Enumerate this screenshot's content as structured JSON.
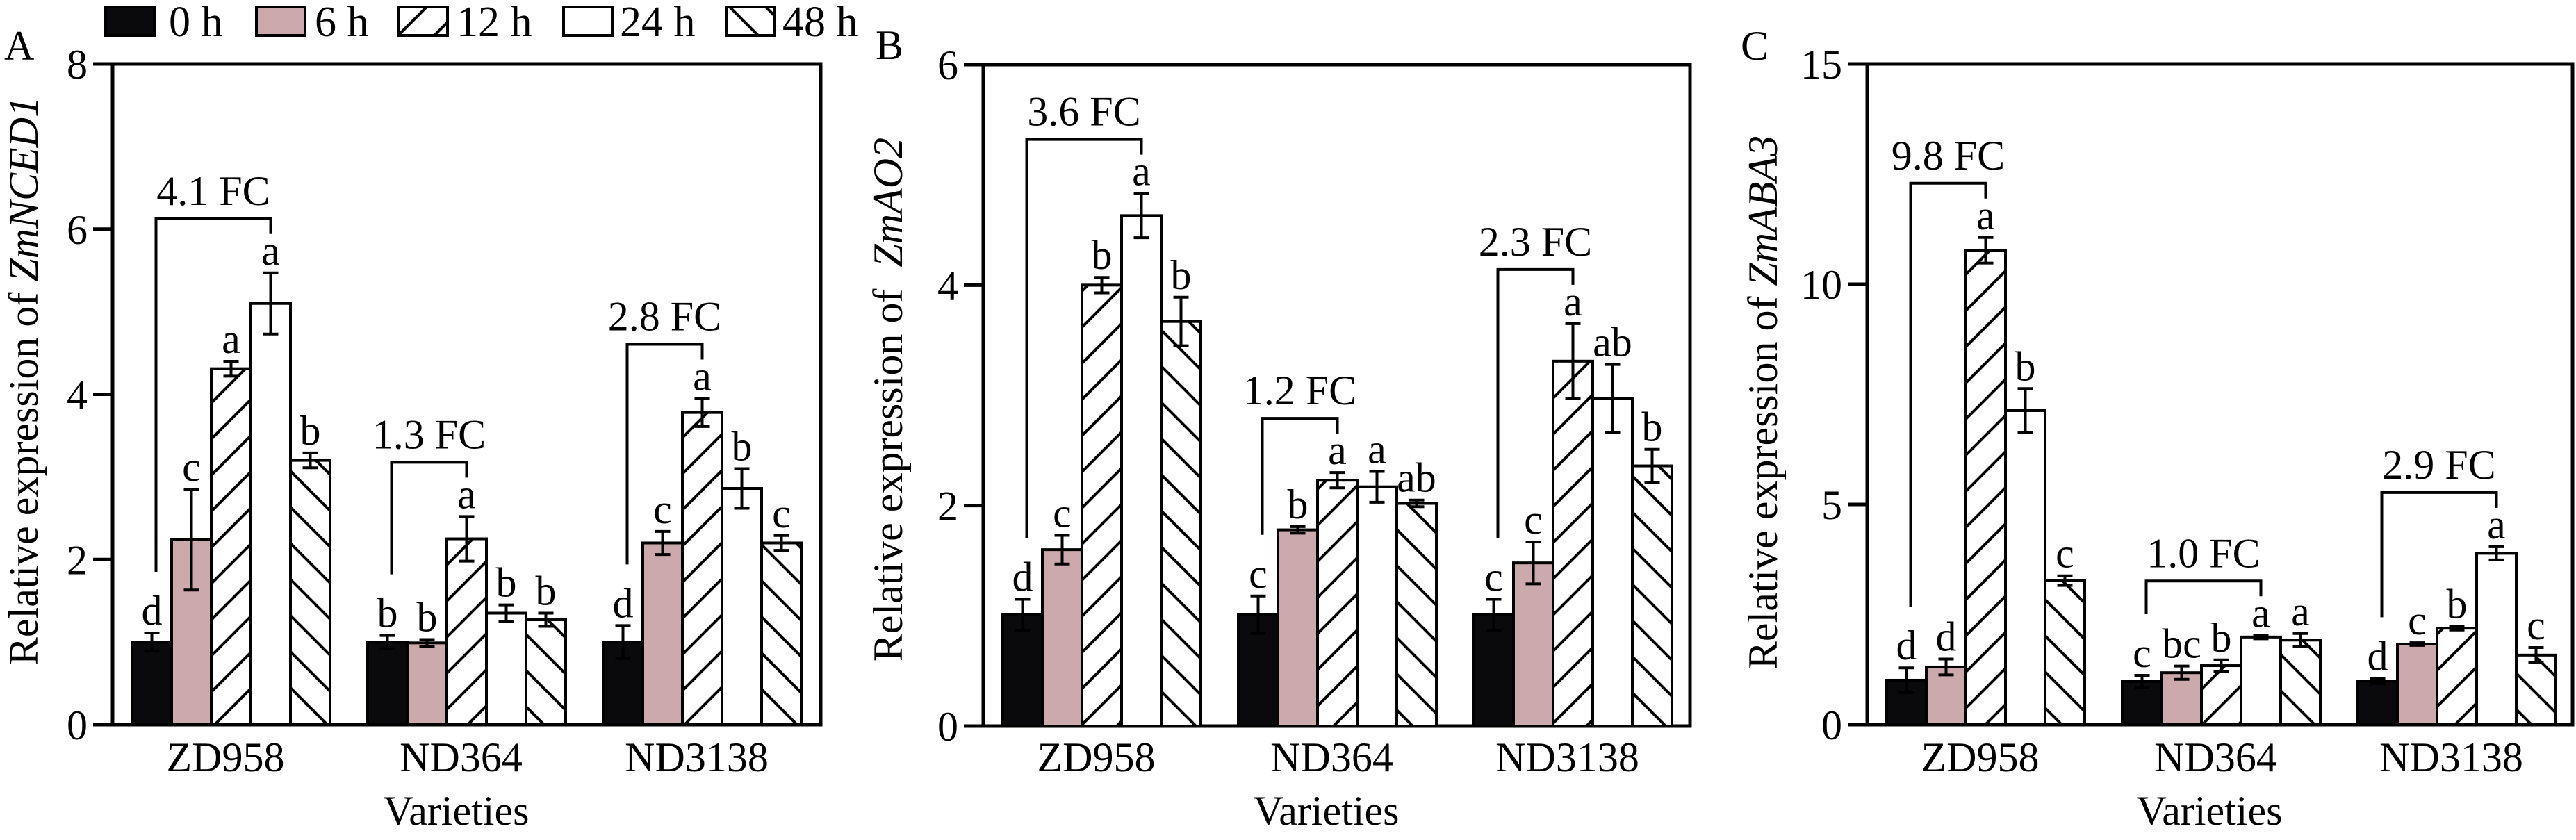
{
  "chart_data": {
    "type": "bar",
    "legend": [
      "0 h",
      "6 h",
      "12 h",
      "24 h",
      "48 h"
    ],
    "legend_placement": "top-left",
    "series_styles": [
      "#0a0a0c",
      "#cca9ac",
      "hatch-forward",
      "#ffffff",
      "hatch-back"
    ],
    "panels": [
      {
        "panel_label": "A",
        "ylabel_prefix": "Relative expression of ",
        "ylabel_gene": "ZmNCED1",
        "xlabel": "Varieties",
        "ylim": [
          0,
          8
        ],
        "yticks": [
          0,
          2,
          4,
          6,
          8
        ],
        "categories": [
          "ZD958",
          "ND364",
          "ND3138"
        ],
        "series": [
          {
            "values": [
              1.0,
              1.0,
              1.0
            ],
            "sd": [
              0.11,
              0.08,
              0.2
            ],
            "letters": [
              "d",
              "b",
              "d"
            ]
          },
          {
            "values": [
              2.24,
              0.99,
              2.2
            ],
            "sd": [
              0.61,
              0.04,
              0.14
            ],
            "letters": [
              "c",
              "b",
              "c"
            ]
          },
          {
            "values": [
              4.31,
              2.25,
              3.78
            ],
            "sd": [
              0.09,
              0.27,
              0.17
            ],
            "letters": [
              "a",
              "a",
              "a"
            ]
          },
          {
            "values": [
              5.1,
              1.35,
              2.86
            ],
            "sd": [
              0.37,
              0.1,
              0.24
            ],
            "letters": [
              "a",
              "b",
              "b"
            ]
          },
          {
            "values": [
              3.2,
              1.27,
              2.2
            ],
            "sd": [
              0.09,
              0.08,
              0.09
            ],
            "letters": [
              "b",
              "b",
              "c"
            ]
          }
        ],
        "fold_changes": [
          {
            "category": "ZD958",
            "from": "0 h",
            "to": "24 h",
            "label": "4.1 FC"
          },
          {
            "category": "ND364",
            "from": "0 h",
            "to": "12 h",
            "label": "1.3 FC"
          },
          {
            "category": "ND3138",
            "from": "0 h",
            "to": "12 h",
            "label": "2.8 FC"
          }
        ]
      },
      {
        "panel_label": "B",
        "ylabel_prefix": "Relative expression of ",
        "ylabel_gene": "ZmAO2",
        "xlabel": "Varieties",
        "ylim": [
          0,
          6
        ],
        "yticks": [
          0,
          2,
          4,
          6
        ],
        "categories": [
          "ZD958",
          "ND364",
          "ND3138"
        ],
        "series": [
          {
            "values": [
              1.01,
              1.01,
              1.01
            ],
            "sd": [
              0.14,
              0.17,
              0.14
            ],
            "letters": [
              "d",
              "c",
              "c"
            ]
          },
          {
            "values": [
              1.6,
              1.78,
              1.48
            ],
            "sd": [
              0.13,
              0.03,
              0.19
            ],
            "letters": [
              "c",
              "b",
              "c"
            ]
          },
          {
            "values": [
              4.0,
              2.23,
              3.31
            ],
            "sd": [
              0.07,
              0.07,
              0.34
            ],
            "letters": [
              "b",
              "a",
              "a"
            ]
          },
          {
            "values": [
              4.63,
              2.17,
              2.97
            ],
            "sd": [
              0.2,
              0.14,
              0.31
            ],
            "letters": [
              "a",
              "a",
              "ab"
            ]
          },
          {
            "values": [
              3.67,
              2.02,
              2.36
            ],
            "sd": [
              0.22,
              0.03,
              0.15
            ],
            "letters": [
              "b",
              "ab",
              "b"
            ]
          }
        ],
        "fold_changes": [
          {
            "category": "ZD958",
            "from": "0 h",
            "to": "24 h",
            "label": "3.6 FC"
          },
          {
            "category": "ND364",
            "from": "0 h",
            "to": "12 h",
            "label": "1.2 FC"
          },
          {
            "category": "ND3138",
            "from": "0 h",
            "to": "12 h",
            "label": "2.3 FC"
          }
        ]
      },
      {
        "panel_label": "C",
        "ylabel_prefix": "Relative expression of ",
        "ylabel_gene": "ZmABA3",
        "xlabel": "Varieties",
        "ylim": [
          0,
          15
        ],
        "yticks": [
          0,
          5,
          10,
          15
        ],
        "categories": [
          "ZD958",
          "ND364",
          "ND3138"
        ],
        "series": [
          {
            "values": [
              1.01,
              0.98,
              0.99
            ],
            "sd": [
              0.28,
              0.14,
              0.06
            ],
            "letters": [
              "d",
              "c",
              "d"
            ]
          },
          {
            "values": [
              1.31,
              1.18,
              1.83
            ],
            "sd": [
              0.18,
              0.15,
              0.03
            ],
            "letters": [
              "d",
              "bc",
              "c"
            ]
          },
          {
            "values": [
              10.77,
              1.34,
              2.19
            ],
            "sd": [
              0.29,
              0.13,
              0.04
            ],
            "letters": [
              "a",
              "b",
              "b"
            ]
          },
          {
            "values": [
              7.13,
              1.99,
              3.89
            ],
            "sd": [
              0.5,
              0.04,
              0.15
            ],
            "letters": [
              "b",
              "a",
              "a"
            ]
          },
          {
            "values": [
              3.27,
              1.92,
              1.58
            ],
            "sd": [
              0.11,
              0.15,
              0.17
            ],
            "letters": [
              "c",
              "a",
              "c"
            ]
          }
        ],
        "fold_changes": [
          {
            "category": "ZD958",
            "from": "0 h",
            "to": "12 h",
            "label": "9.8 FC"
          },
          {
            "category": "ND364",
            "from": "0 h",
            "to": "24 h",
            "label": "1.0 FC"
          },
          {
            "category": "ND3138",
            "from": "0 h",
            "to": "24 h",
            "label": "2.9 FC"
          }
        ]
      }
    ]
  }
}
